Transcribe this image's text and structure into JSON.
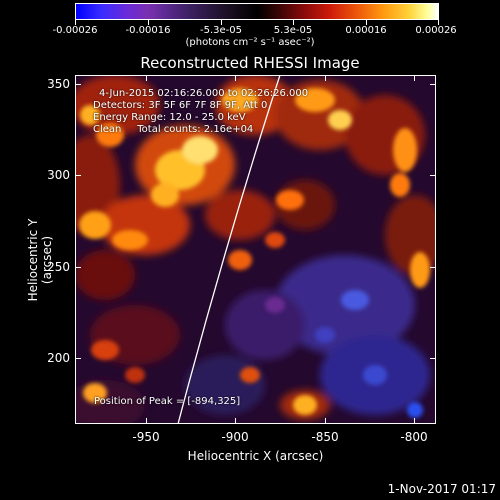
{
  "colorbar": {
    "labels": [
      "-0.00026",
      "-0.00016",
      "-5.3e-05",
      "5.3e-05",
      "0.00016",
      "0.00026"
    ],
    "units": "(photons cm⁻² s⁻¹ asec⁻²)"
  },
  "title": "Reconstructed RHESSI Image",
  "annotations": {
    "time_range": "4-Jun-2015 02:16:26.000 to 02:26:26.000",
    "detectors": "Detectors: 3F 5F 6F 7F 8F 9F, Att 0",
    "energy": "Energy Range: 12.0 - 25.0 keV",
    "clean": "Clean     Total counts: 2.16e+04",
    "peak": "Position of Peak = [-894,325]"
  },
  "axes": {
    "ylabel": "Heliocentric Y (arcsec)",
    "xlabel": "Heliocentric X (arcsec)",
    "yticks": [
      "350",
      "300",
      "250",
      "200"
    ],
    "xticks": [
      "-950",
      "-900",
      "-850",
      "-800"
    ]
  },
  "timestamp": "1-Nov-2017 01:17"
}
